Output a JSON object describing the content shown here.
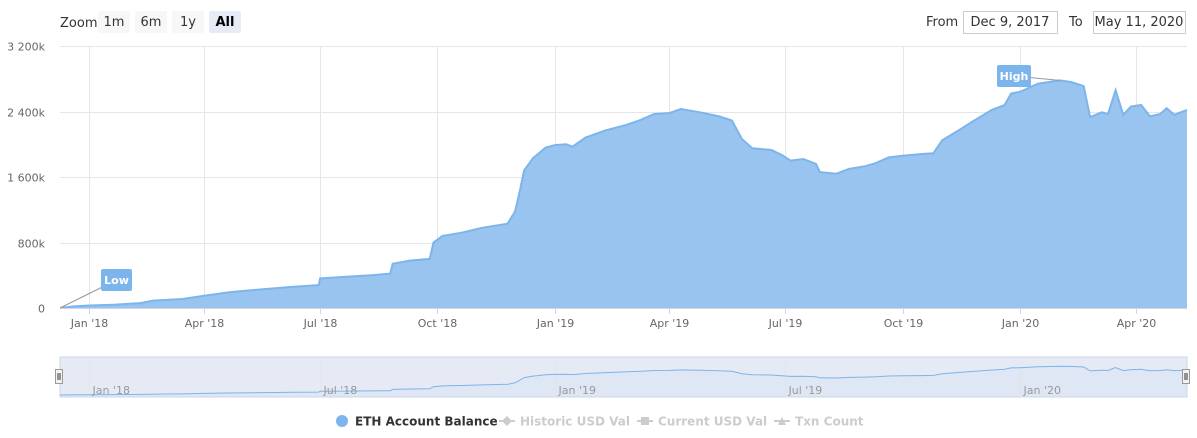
{
  "range_selector": {
    "zoom_label": "Zoom",
    "buttons": [
      "1m",
      "6m",
      "1y",
      "All"
    ],
    "active": "All",
    "from_label": "From",
    "from_value": "Dec 9, 2017",
    "to_label": "To",
    "to_value": "May 11, 2020"
  },
  "flags": {
    "low": "Low",
    "high": "High"
  },
  "navigator": {
    "ticks": [
      "Jan '18",
      "Jul '18",
      "Jan '19",
      "Jul '19",
      "Jan '20"
    ]
  },
  "colors": {
    "series": "#7cb5ec",
    "area_fill": "#99c4ef",
    "navigator_mask": "#ccd6eb",
    "legend_hidden": "#cccccc"
  },
  "chart_data": {
    "type": "area",
    "y_ticks": [
      "0",
      "800k",
      "1 600k",
      "2 400k",
      "3 200k"
    ],
    "ylim": [
      0,
      3200000
    ],
    "x_range": [
      "2017-12-09",
      "2020-05-11"
    ],
    "x_ticks": [
      {
        "date": "2018-01-01",
        "label": "Jan '18"
      },
      {
        "date": "2018-04-01",
        "label": "Apr '18"
      },
      {
        "date": "2018-07-01",
        "label": "Jul '18"
      },
      {
        "date": "2018-10-01",
        "label": "Oct '18"
      },
      {
        "date": "2019-01-01",
        "label": "Jan '19"
      },
      {
        "date": "2019-04-01",
        "label": "Apr '19"
      },
      {
        "date": "2019-07-01",
        "label": "Jul '19"
      },
      {
        "date": "2019-10-01",
        "label": "Oct '19"
      },
      {
        "date": "2020-01-01",
        "label": "Jan '20"
      },
      {
        "date": "2020-04-01",
        "label": "Apr '20"
      }
    ],
    "grid": true,
    "legend_position": "bottom",
    "legend": [
      {
        "name": "ETH Account Balance",
        "visible": true
      },
      {
        "name": "Historic USD Val",
        "visible": false
      },
      {
        "name": "Current USD Val",
        "visible": false
      },
      {
        "name": "Txn Count",
        "visible": false
      }
    ],
    "series": [
      {
        "name": "ETH Account Balance",
        "points": [
          [
            "2017-12-09",
            0
          ],
          [
            "2017-12-20",
            20000
          ],
          [
            "2018-01-01",
            30000
          ],
          [
            "2018-01-20",
            40000
          ],
          [
            "2018-02-10",
            60000
          ],
          [
            "2018-02-20",
            90000
          ],
          [
            "2018-03-15",
            110000
          ],
          [
            "2018-04-01",
            150000
          ],
          [
            "2018-04-20",
            190000
          ],
          [
            "2018-05-10",
            220000
          ],
          [
            "2018-06-10",
            260000
          ],
          [
            "2018-06-30",
            280000
          ],
          [
            "2018-07-01",
            360000
          ],
          [
            "2018-07-20",
            380000
          ],
          [
            "2018-08-10",
            400000
          ],
          [
            "2018-08-25",
            420000
          ],
          [
            "2018-08-27",
            540000
          ],
          [
            "2018-09-10",
            580000
          ],
          [
            "2018-09-25",
            600000
          ],
          [
            "2018-09-28",
            800000
          ],
          [
            "2018-10-05",
            880000
          ],
          [
            "2018-10-20",
            920000
          ],
          [
            "2018-11-05",
            980000
          ],
          [
            "2018-11-25",
            1030000
          ],
          [
            "2018-12-01",
            1180000
          ],
          [
            "2018-12-05",
            1450000
          ],
          [
            "2018-12-08",
            1680000
          ],
          [
            "2018-12-15",
            1830000
          ],
          [
            "2018-12-25",
            1960000
          ],
          [
            "2019-01-01",
            1990000
          ],
          [
            "2019-01-10",
            2000000
          ],
          [
            "2019-01-15",
            1970000
          ],
          [
            "2019-01-25",
            2080000
          ],
          [
            "2019-02-10",
            2170000
          ],
          [
            "2019-02-25",
            2230000
          ],
          [
            "2019-03-10",
            2300000
          ],
          [
            "2019-03-20",
            2370000
          ],
          [
            "2019-04-01",
            2380000
          ],
          [
            "2019-04-10",
            2430000
          ],
          [
            "2019-04-25",
            2390000
          ],
          [
            "2019-05-10",
            2340000
          ],
          [
            "2019-05-20",
            2290000
          ],
          [
            "2019-05-28",
            2060000
          ],
          [
            "2019-06-05",
            1950000
          ],
          [
            "2019-06-20",
            1930000
          ],
          [
            "2019-06-28",
            1870000
          ],
          [
            "2019-07-05",
            1800000
          ],
          [
            "2019-07-15",
            1820000
          ],
          [
            "2019-07-25",
            1760000
          ],
          [
            "2019-07-28",
            1660000
          ],
          [
            "2019-08-10",
            1640000
          ],
          [
            "2019-08-20",
            1700000
          ],
          [
            "2019-09-01",
            1730000
          ],
          [
            "2019-09-10",
            1770000
          ],
          [
            "2019-09-20",
            1840000
          ],
          [
            "2019-10-01",
            1860000
          ],
          [
            "2019-10-15",
            1880000
          ],
          [
            "2019-10-25",
            1890000
          ],
          [
            "2019-11-01",
            2050000
          ],
          [
            "2019-11-15",
            2180000
          ],
          [
            "2019-11-25",
            2280000
          ],
          [
            "2019-12-10",
            2420000
          ],
          [
            "2019-12-20",
            2480000
          ],
          [
            "2019-12-25",
            2620000
          ],
          [
            "2020-01-01",
            2640000
          ],
          [
            "2020-01-15",
            2740000
          ],
          [
            "2020-02-01",
            2780000
          ],
          [
            "2020-02-10",
            2760000
          ],
          [
            "2020-02-20",
            2710000
          ],
          [
            "2020-02-25",
            2330000
          ],
          [
            "2020-03-05",
            2390000
          ],
          [
            "2020-03-10",
            2370000
          ],
          [
            "2020-03-16",
            2660000
          ],
          [
            "2020-03-22",
            2360000
          ],
          [
            "2020-03-28",
            2460000
          ],
          [
            "2020-04-05",
            2480000
          ],
          [
            "2020-04-12",
            2340000
          ],
          [
            "2020-04-20",
            2370000
          ],
          [
            "2020-04-25",
            2440000
          ],
          [
            "2020-05-01",
            2360000
          ],
          [
            "2020-05-11",
            2420000
          ]
        ]
      }
    ]
  }
}
